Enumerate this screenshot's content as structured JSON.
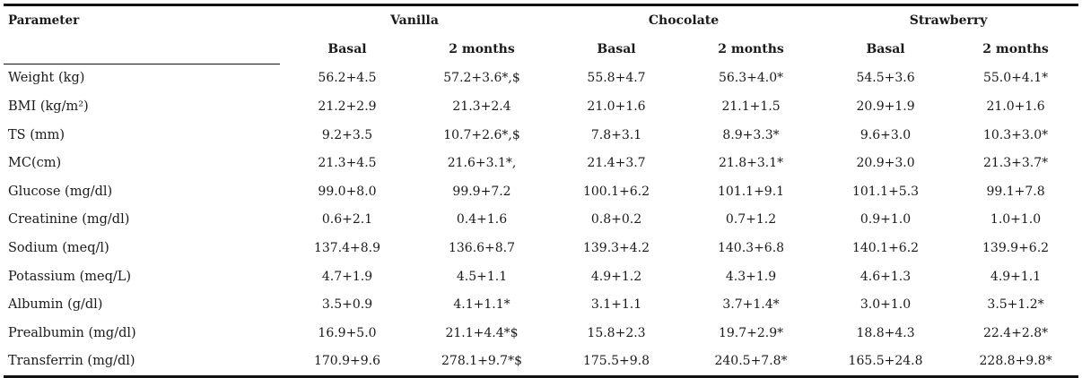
{
  "header": {
    "parameter": "Parameter",
    "groups": [
      "Vanilla",
      "Chocolate",
      "Strawberry"
    ],
    "sub": [
      "Basal",
      "2 months",
      "Basal",
      "2 months",
      "Basal",
      "2 months"
    ]
  },
  "rows": [
    {
      "name": "Weight (kg)",
      "values": [
        "56.2+4.5",
        "57.2+3.6*,$",
        "55.8+4.7",
        "56.3+4.0*",
        "54.5+3.6",
        "55.0+4.1*"
      ]
    },
    {
      "name": "BMI (kg/m²)",
      "values": [
        "21.2+2.9",
        "21.3+2.4",
        "21.0+1.6",
        "21.1+1.5",
        "20.9+1.9",
        "21.0+1.6"
      ]
    },
    {
      "name": "TS (mm)",
      "values": [
        "9.2+3.5",
        "10.7+2.6*,$",
        "7.8+3.1",
        "8.9+3.3*",
        "9.6+3.0",
        "10.3+3.0*"
      ]
    },
    {
      "name": "MC(cm)",
      "values": [
        "21.3+4.5",
        "21.6+3.1*,",
        "21.4+3.7",
        "21.8+3.1*",
        "20.9+3.0",
        "21.3+3.7*"
      ]
    },
    {
      "name": "Glucose (mg/dl)",
      "values": [
        "99.0+8.0",
        "99.9+7.2",
        "100.1+6.2",
        "101.1+9.1",
        "101.1+5.3",
        "99.1+7.8"
      ]
    },
    {
      "name": "Creatinine (mg/dl)",
      "values": [
        "0.6+2.1",
        "0.4+1.6",
        "0.8+0.2",
        "0.7+1.2",
        "0.9+1.0",
        "1.0+1.0"
      ]
    },
    {
      "name": "Sodium (meq/l)",
      "values": [
        "137.4+8.9",
        "136.6+8.7",
        "139.3+4.2",
        "140.3+6.8",
        "140.1+6.2",
        "139.9+6.2"
      ]
    },
    {
      "name": "Potassium (meq/L)",
      "values": [
        "4.7+1.9",
        "4.5+1.1",
        "4.9+1.2",
        "4.3+1.9",
        "4.6+1.3",
        "4.9+1.1"
      ]
    },
    {
      "name": "Albumin (g/dl)",
      "values": [
        "3.5+0.9",
        "4.1+1.1*",
        "3.1+1.1",
        "3.7+1.4*",
        "3.0+1.0",
        "3.5+1.2*"
      ]
    },
    {
      "name": "Prealbumin (mg/dl)",
      "values": [
        "16.9+5.0",
        "21.1+4.4*$",
        "15.8+2.3",
        "19.7+2.9*",
        "18.8+4.3",
        "22.4+2.8*"
      ]
    },
    {
      "name": "Transferrin (mg/dl)",
      "values": [
        "170.9+9.6",
        "278.1+9.7*$",
        "175.5+9.8",
        "240.5+7.8*",
        "165.5+24.8",
        "228.8+9.8*"
      ]
    }
  ]
}
